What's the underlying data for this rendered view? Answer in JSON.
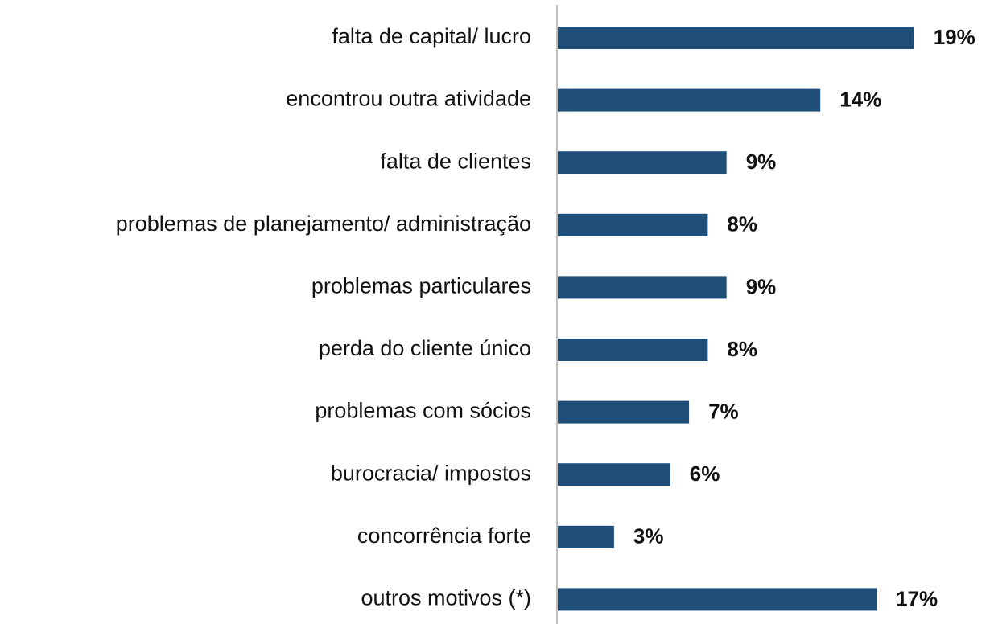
{
  "chart_data": {
    "type": "barh",
    "categories": [
      "falta de capital/ lucro",
      "encontrou outra atividade",
      "falta de clientes",
      "problemas de planejamento/ administração",
      "problemas particulares",
      "perda do cliente único",
      "problemas com sócios",
      "burocracia/ impostos",
      "concorrência forte",
      "outros motivos (*)"
    ],
    "values": [
      19,
      14,
      9,
      8,
      9,
      8,
      7,
      6,
      3,
      17
    ],
    "value_labels": [
      "19%",
      "14%",
      "9%",
      "8%",
      "9%",
      "8%",
      "7%",
      "6%",
      "3%",
      "17%"
    ],
    "color": "#1f4e79"
  }
}
